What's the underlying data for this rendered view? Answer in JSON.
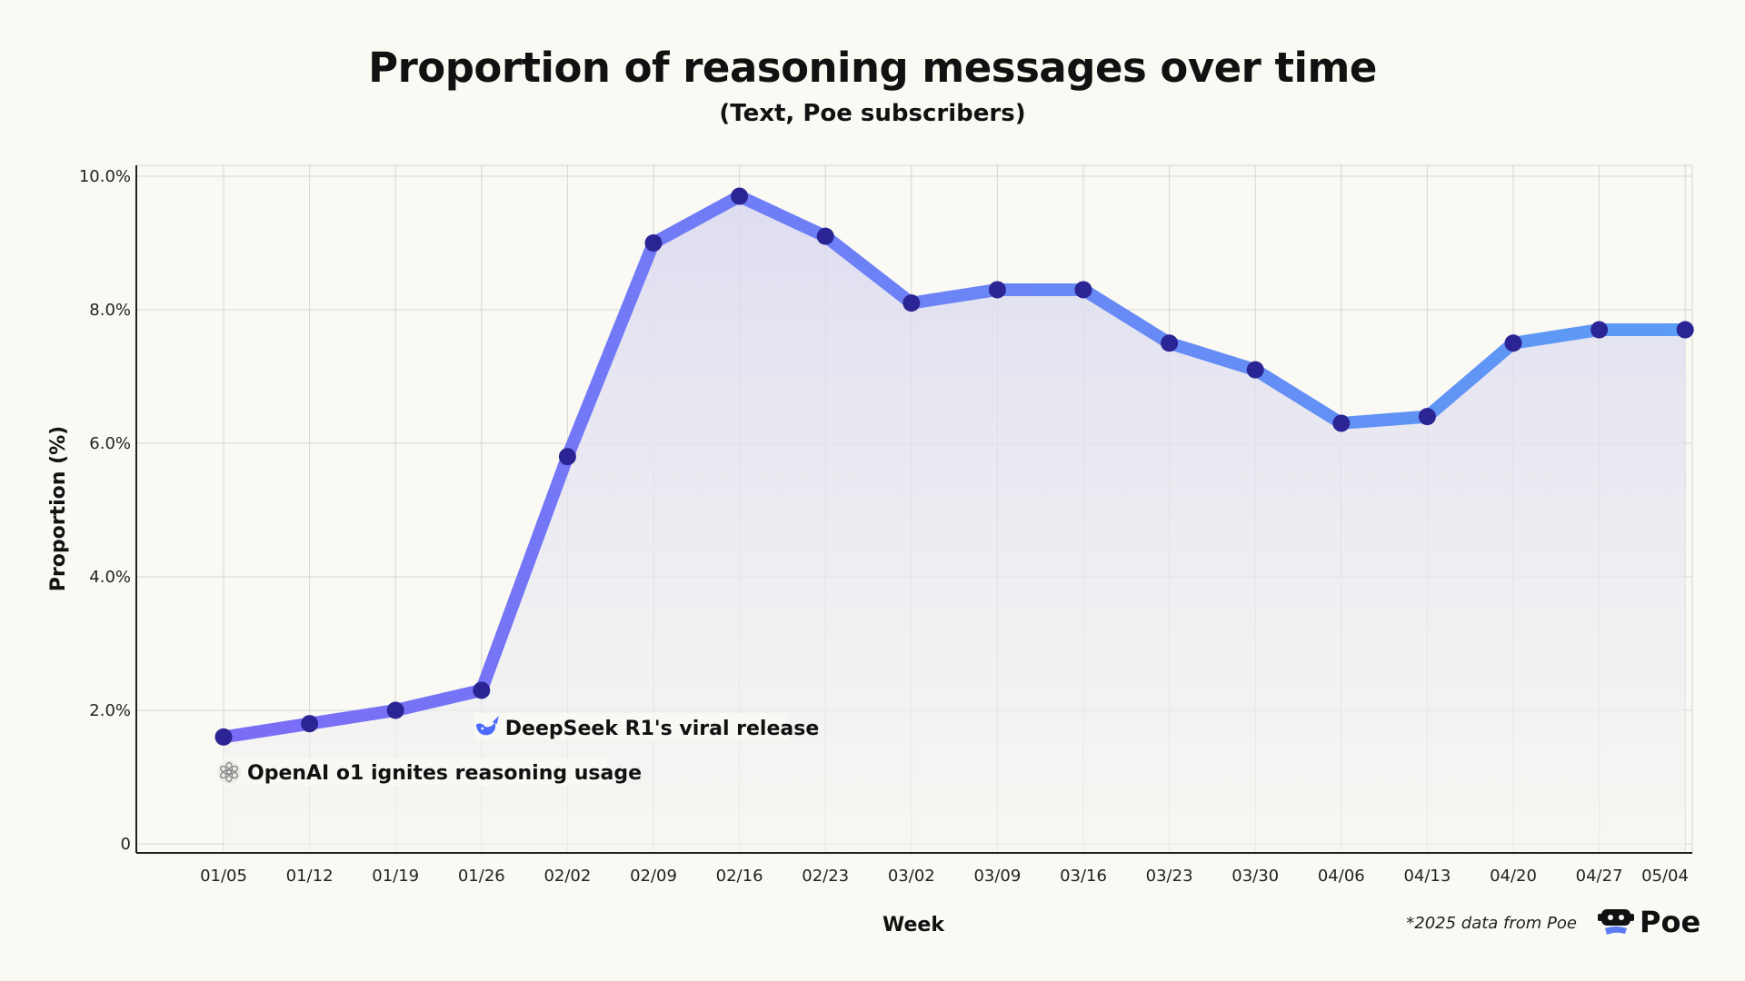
{
  "chart_data": {
    "type": "line",
    "title": "Proportion of reasoning messages over time",
    "subtitle": "(Text, Poe subscribers)",
    "xlabel": "Week",
    "ylabel": "Proportion (%)",
    "ylim": [
      0,
      10
    ],
    "yticks": [
      0,
      2,
      4,
      6,
      8,
      10
    ],
    "ytick_labels": [
      "0",
      "2.0%",
      "4.0%",
      "6.0%",
      "8.0%",
      "10.0%"
    ],
    "categories": [
      "01/05",
      "01/12",
      "01/19",
      "01/26",
      "02/02",
      "02/09",
      "02/16",
      "02/23",
      "03/02",
      "03/09",
      "03/16",
      "03/23",
      "03/30",
      "04/06",
      "04/13",
      "04/20",
      "04/27",
      "05/04"
    ],
    "series": [
      {
        "name": "Proportion of reasoning messages",
        "values": [
          1.6,
          1.8,
          2.0,
          2.3,
          5.8,
          9.0,
          9.7,
          9.1,
          8.1,
          8.3,
          8.3,
          7.5,
          7.1,
          6.3,
          6.4,
          7.5,
          7.7,
          7.7
        ]
      }
    ],
    "annotations": [
      {
        "text": "OpenAI o1 ignites reasoning usage",
        "at": "01/05",
        "icon": "openai-logo-icon"
      },
      {
        "text": "DeepSeek R1's viral release",
        "at": "01/26",
        "icon": "deepseek-whale-icon"
      }
    ],
    "grid": true,
    "colors": {
      "line_start": "#7b6cf6",
      "line_end": "#5b9cf5",
      "marker": "#2b2494",
      "area": "#d9d8f0",
      "grid": "#d7d6d2"
    }
  },
  "footer": {
    "note": "*2025 data from Poe",
    "brand": "Poe"
  }
}
